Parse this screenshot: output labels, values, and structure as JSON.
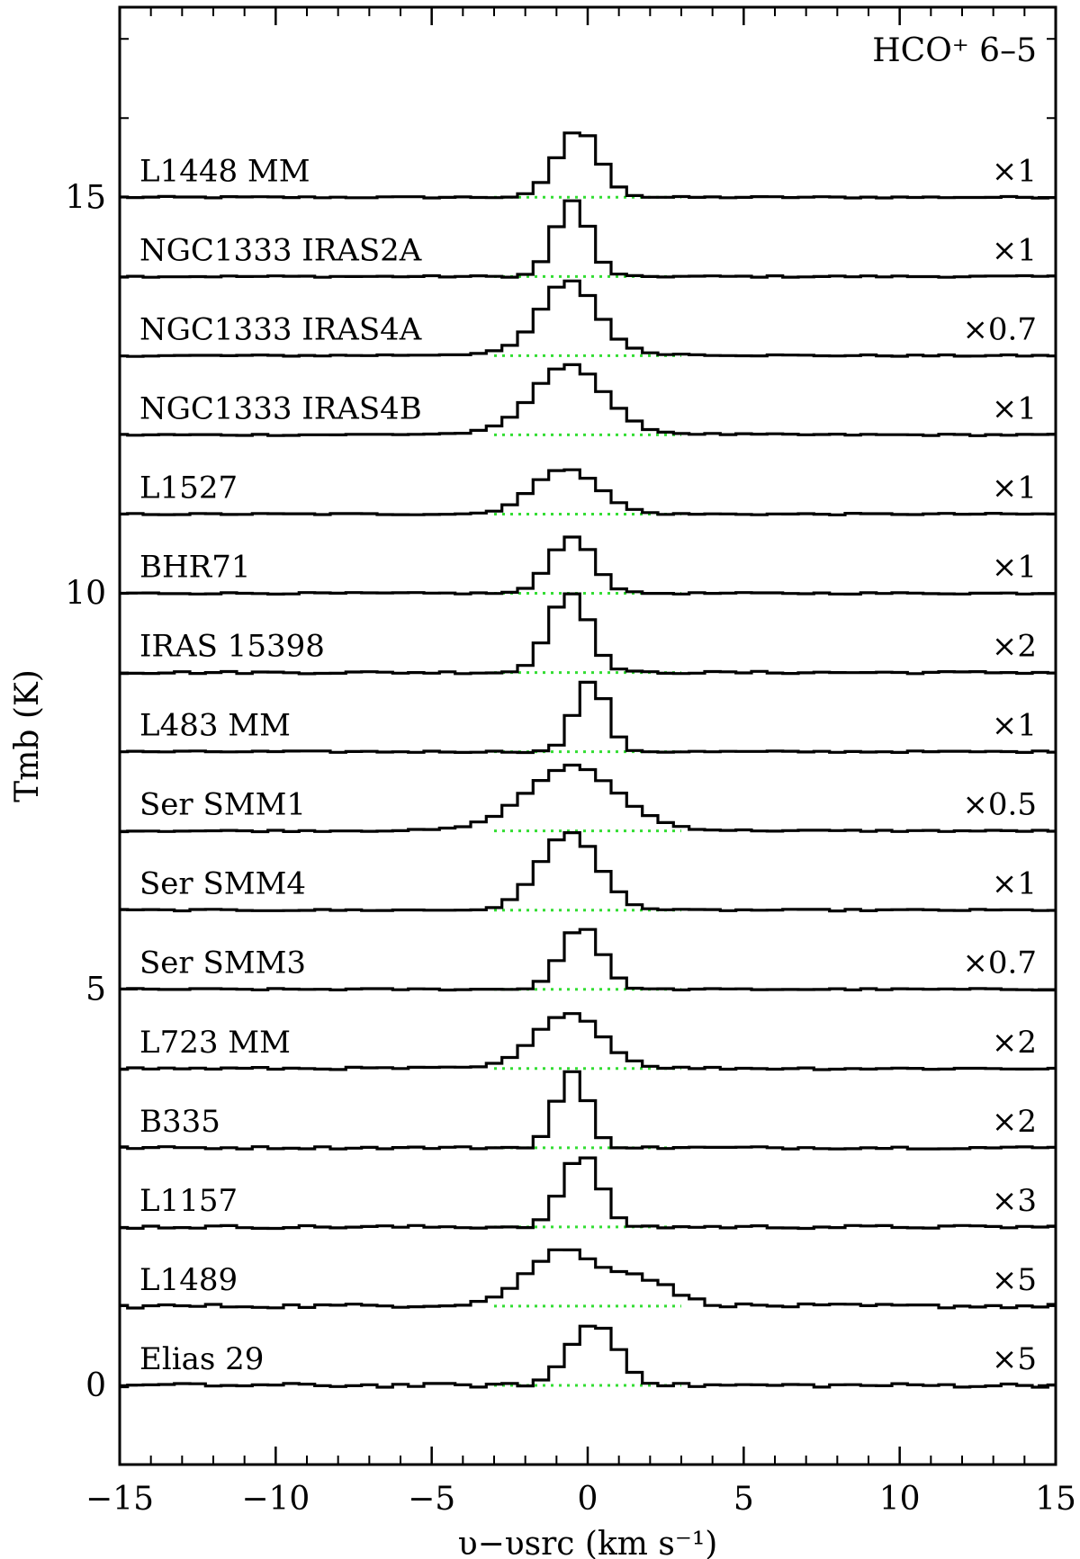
{
  "chart_data": {
    "type": "line",
    "style": "step",
    "title": "HCO⁺ 6–5",
    "xlabel": "υ−υsrc (km s⁻¹)",
    "ylabel": "Tmb (K)",
    "xlim": [
      -15,
      15
    ],
    "ylim": [
      -1.0,
      17.4
    ],
    "x_ticks": [
      -15,
      -10,
      -5,
      0,
      5,
      10,
      15
    ],
    "x_tick_labels": [
      "−15",
      "−10",
      "−5",
      "0",
      "5",
      "10",
      "15"
    ],
    "y_ticks": [
      0,
      5,
      10,
      15
    ],
    "y_tick_labels": [
      "0",
      "5",
      "10",
      "15"
    ],
    "grid": false,
    "baseline_style": "dotted green",
    "colors": {
      "spectrum": "#000000",
      "baseline": "#33dd33",
      "axes": "#000000"
    },
    "series": [
      {
        "name": "L1448 MM",
        "scale": "×1",
        "offset": 15.0,
        "center": -0.3,
        "peak": 0.85,
        "width": 1.6,
        "fill": 0.0,
        "noise": 0.02,
        "wing": 0.0
      },
      {
        "name": "NGC1333 IRAS2A",
        "scale": "×1",
        "offset": 14.0,
        "center": -0.5,
        "peak": 0.95,
        "width": 1.3,
        "fill": 0.0,
        "noise": 0.02,
        "wing": 0.0
      },
      {
        "name": "NGC1333 IRAS4A",
        "scale": "×0.7",
        "offset": 13.0,
        "center": -0.6,
        "peak": 0.87,
        "width": 2.1,
        "fill": 0.0,
        "noise": 0.02,
        "wing": 0.1
      },
      {
        "name": "NGC1333 IRAS4B",
        "scale": "×1",
        "offset": 12.0,
        "center": -0.6,
        "peak": 0.82,
        "width": 2.6,
        "fill": 0.0,
        "noise": 0.02,
        "wing": 0.1
      },
      {
        "name": "L1527",
        "scale": "×1",
        "offset": 11.0,
        "center": -0.7,
        "peak": 0.58,
        "width": 2.4,
        "fill": 0.0,
        "noise": 0.02,
        "wing": 0.0
      },
      {
        "name": "BHR71",
        "scale": "×1",
        "offset": 10.0,
        "center": -0.5,
        "peak": 0.72,
        "width": 1.6,
        "fill": 0.0,
        "noise": 0.02,
        "wing": 0.0
      },
      {
        "name": "IRAS 15398",
        "scale": "×2",
        "offset": 9.0,
        "center": -0.6,
        "peak": 1.02,
        "width": 1.5,
        "fill": 0.0,
        "noise": 0.03,
        "wing": 0.0
      },
      {
        "name": "L483 MM",
        "scale": "×1",
        "offset": 8.0,
        "center": 0.1,
        "peak": 0.9,
        "width": 1.2,
        "fill": 0.0,
        "noise": 0.02,
        "wing": 0.0
      },
      {
        "name": "Ser SMM1",
        "scale": "×0.5",
        "offset": 7.0,
        "center": -0.5,
        "peak": 0.75,
        "width": 3.4,
        "fill": 0.0,
        "noise": 0.02,
        "wing": 0.1
      },
      {
        "name": "Ser SMM4",
        "scale": "×1",
        "offset": 6.0,
        "center": -0.6,
        "peak": 0.98,
        "width": 2.2,
        "fill": 0.0,
        "noise": 0.02,
        "wing": 0.0
      },
      {
        "name": "Ser SMM3",
        "scale": "×0.7",
        "offset": 5.0,
        "center": -0.2,
        "peak": 0.8,
        "width": 1.5,
        "fill": 0.0,
        "noise": 0.02,
        "wing": 0.0
      },
      {
        "name": "L723 MM",
        "scale": "×2",
        "offset": 4.0,
        "center": -0.6,
        "peak": 0.68,
        "width": 2.4,
        "fill": 0.0,
        "noise": 0.03,
        "wing": 0.05
      },
      {
        "name": "B335",
        "scale": "×2",
        "offset": 3.0,
        "center": -0.5,
        "peak": 0.95,
        "width": 1.2,
        "fill": 0.0,
        "noise": 0.03,
        "wing": 0.0
      },
      {
        "name": "L1157",
        "scale": "×3",
        "offset": 2.0,
        "center": -0.2,
        "peak": 0.92,
        "width": 1.4,
        "fill": 0.0,
        "noise": 0.04,
        "wing": 0.0
      },
      {
        "name": "L1489",
        "scale": "×5",
        "offset": 1.0,
        "center": -0.8,
        "peak": 0.62,
        "width": 2.6,
        "fill": 0.3,
        "noise": 0.05,
        "wing": 0.15
      },
      {
        "name": "Elias 29",
        "scale": "×5",
        "offset": 0.0,
        "center": 0.2,
        "peak": 0.78,
        "width": 1.8,
        "fill": 0.0,
        "noise": 0.05,
        "wing": 0.0
      }
    ]
  }
}
